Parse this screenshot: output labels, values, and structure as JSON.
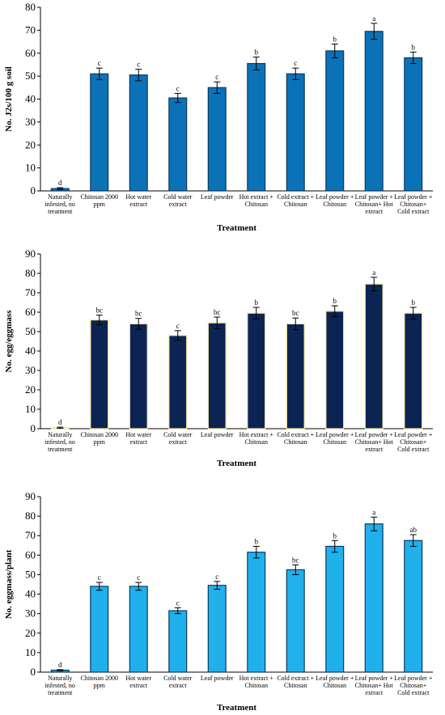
{
  "chart_data": [
    {
      "type": "bar",
      "xlabel": "Treatment",
      "ylabel": "No. J2s/100 g soil",
      "ylim": [
        0,
        80
      ],
      "yticks": [
        0,
        10,
        20,
        30,
        40,
        50,
        60,
        70,
        80
      ],
      "categories": [
        [
          "Naturally",
          "infested, no",
          "treatment"
        ],
        [
          "Chitosan 2000",
          "ppm"
        ],
        [
          "Hot water",
          "extract"
        ],
        [
          "Cold water",
          "extract"
        ],
        [
          "Leaf powder"
        ],
        [
          "Hot extract +",
          "Chitosan"
        ],
        [
          "Cold extract +",
          "Chitosan"
        ],
        [
          "Leaf powder +",
          "Chitosan"
        ],
        [
          "Leaf powder +",
          "Chitosan+ Hot",
          "extract"
        ],
        [
          "Leaf powder +",
          "Chitosan+",
          "Cold extract"
        ]
      ],
      "values": [
        1,
        51,
        50.5,
        40.5,
        45,
        55.5,
        51,
        61,
        69.5,
        58
      ],
      "errors": [
        0.4,
        2.5,
        2.5,
        2,
        2.5,
        2.8,
        2.5,
        3,
        3.5,
        2.5
      ],
      "significance": [
        "d",
        "c",
        "c",
        "c",
        "c",
        "b",
        "c",
        "b",
        "a",
        "b"
      ],
      "bar_color": "#0b72b8",
      "bar_edge_color": "#0d3a5c",
      "grid": false
    },
    {
      "type": "bar",
      "xlabel": "Treatment",
      "ylabel": "No. egg/eggmass",
      "ylim": [
        0,
        90
      ],
      "yticks": [
        0,
        10,
        20,
        30,
        40,
        50,
        60,
        70,
        80,
        90
      ],
      "categories": [
        [
          "Naturally",
          "infested, no",
          "treatment"
        ],
        [
          "Chitosan 2000",
          "ppm"
        ],
        [
          "Hot water",
          "extract"
        ],
        [
          "Cold water",
          "extract"
        ],
        [
          "Leaf powder"
        ],
        [
          "Hot extract +",
          "Chitosan"
        ],
        [
          "Cold extract +",
          "Chitosan"
        ],
        [
          "Leaf powder +",
          "Chitosan"
        ],
        [
          "Leaf powder +",
          "Chitosan+ Hot",
          "extract"
        ],
        [
          "Leaf powder +",
          "Chitosan+",
          "Cold extract"
        ]
      ],
      "values": [
        0.5,
        56,
        54,
        48,
        54.5,
        59.5,
        54,
        60.5,
        74.5,
        59.5
      ],
      "errors": [
        0.3,
        2.5,
        2.8,
        2.5,
        3,
        3,
        3,
        2.8,
        3.5,
        3
      ],
      "significance": [
        "d",
        "bc",
        "bc",
        "c",
        "bc",
        "b",
        "bc",
        "b",
        "a",
        "b"
      ],
      "bar_color": "#0c2454",
      "bar_edge_color": "#f3e6a0",
      "grid": false
    },
    {
      "type": "bar",
      "xlabel": "Treatment",
      "ylabel": "No. eggmass/plant",
      "ylim": [
        0,
        90
      ],
      "yticks": [
        0,
        10,
        20,
        30,
        40,
        50,
        60,
        70,
        80,
        90
      ],
      "categories": [
        [
          "Naturally",
          "infested, no",
          "treatment"
        ],
        [
          "Chitosan 2000",
          "ppm"
        ],
        [
          "Hot water",
          "extract"
        ],
        [
          "Cold water",
          "extract"
        ],
        [
          "Leaf powder"
        ],
        [
          "Hot extract +",
          "Chitosan"
        ],
        [
          "Cold extract +",
          "Chitosan"
        ],
        [
          "Leaf powder +",
          "Chitosan"
        ],
        [
          "Leaf powder +",
          "Chitosan+ Hot",
          "extract"
        ],
        [
          "Leaf powder +",
          "Chitosan+",
          "Cold extract"
        ]
      ],
      "values": [
        1,
        44,
        44,
        31.5,
        44.5,
        61.5,
        52.5,
        64.5,
        76,
        67.5
      ],
      "errors": [
        0.3,
        2,
        2,
        1.5,
        2,
        3,
        2.5,
        3,
        3.5,
        3
      ],
      "significance": [
        "d",
        "c",
        "c",
        "c",
        "c",
        "b",
        "bc",
        "b",
        "a",
        "ab"
      ],
      "bar_color": "#20b0ec",
      "bar_edge_color": "#0d3a5c",
      "grid": false
    }
  ]
}
